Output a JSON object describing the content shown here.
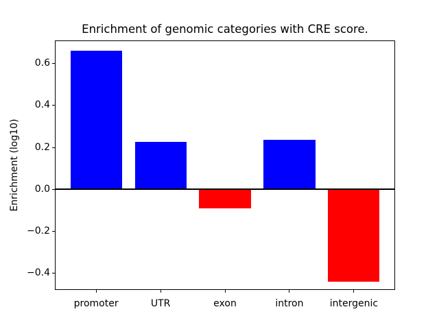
{
  "figure": {
    "background": "#ffffff",
    "text_color": "#000000",
    "axis_color": "#000000"
  },
  "chart_data": {
    "type": "bar",
    "title": "Enrichment of genomic categories with CRE score.",
    "xlabel": "",
    "ylabel": "Enrichment (log10)",
    "categories": [
      "promoter",
      "UTR",
      "exon",
      "intron",
      "intergenic"
    ],
    "values": [
      0.66,
      0.225,
      -0.09,
      0.235,
      -0.44
    ],
    "bar_colors": [
      "#0000ff",
      "#0000ff",
      "#ff0000",
      "#0000ff",
      "#ff0000"
    ],
    "positive_color": "#0000ff",
    "negative_color": "#ff0000",
    "bar_width": 0.8,
    "xlim": [
      -0.64,
      4.64
    ],
    "ylim": [
      -0.48,
      0.71
    ],
    "yticks": {
      "values": [
        0.6,
        0.4,
        0.2,
        0.0,
        -0.2,
        -0.4
      ],
      "labels": [
        "0.6",
        "0.4",
        "0.2",
        "0.0",
        "−0.2",
        "−0.4"
      ]
    },
    "zero_line": true,
    "grid": false
  }
}
